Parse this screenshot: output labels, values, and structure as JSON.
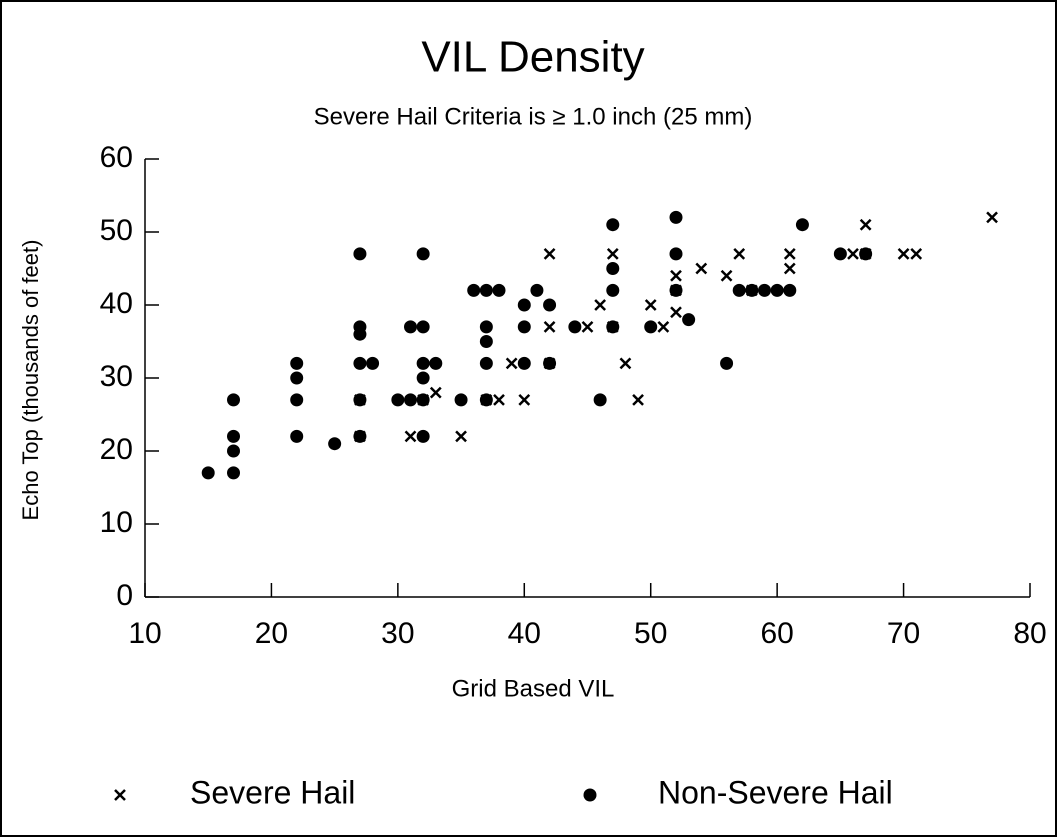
{
  "chart_data": {
    "type": "scatter",
    "title": "VIL Density",
    "subtitle": "Severe Hail Criteria is ≥ 1.0 inch (25 mm)",
    "x_label": "Grid Based VIL",
    "y_label": "Echo Top (thousands of feet)",
    "xlim": [
      10,
      80
    ],
    "xticks": [
      10,
      20,
      30,
      40,
      50,
      60,
      70,
      80
    ],
    "ylim": [
      0,
      60
    ],
    "yticks": [
      0,
      10,
      20,
      30,
      40,
      50,
      60
    ],
    "grid": false,
    "legend": "bottom",
    "series": [
      {
        "name": "Severe Hail",
        "color": "#000000",
        "marker": "x",
        "x": [
          77,
          70,
          71,
          66,
          67,
          67,
          61,
          61,
          57,
          58,
          56,
          54,
          52,
          52,
          52,
          51,
          50,
          49,
          48,
          47,
          47,
          46,
          45,
          42,
          42,
          42,
          40,
          39,
          38,
          37,
          35,
          33,
          32,
          31,
          27,
          27
        ],
        "y": [
          52,
          47,
          47,
          47,
          47,
          51,
          47,
          45,
          47,
          42,
          44,
          45,
          44,
          42,
          39,
          37,
          40,
          27,
          32,
          47,
          37,
          40,
          37,
          47,
          37,
          32,
          27,
          32,
          27,
          27,
          22,
          28,
          27,
          22,
          22,
          27
        ]
      },
      {
        "name": "Non-Severe Hail",
        "color": "#000000",
        "marker": "circle",
        "x": [
          15,
          17,
          17,
          17,
          17,
          22,
          22,
          22,
          22,
          25,
          27,
          27,
          27,
          27,
          27,
          27,
          28,
          30,
          31,
          31,
          32,
          32,
          32,
          32,
          32,
          32,
          33,
          35,
          36,
          37,
          37,
          37,
          37,
          37,
          38,
          40,
          40,
          40,
          41,
          42,
          42,
          44,
          46,
          47,
          47,
          47,
          47,
          50,
          52,
          52,
          52,
          53,
          56,
          57,
          58,
          59,
          60,
          61,
          62,
          65,
          67
        ],
        "y": [
          17,
          17,
          20,
          22,
          27,
          22,
          27,
          30,
          32,
          21,
          22,
          27,
          32,
          36,
          37,
          47,
          32,
          27,
          27,
          37,
          22,
          27,
          30,
          32,
          37,
          47,
          32,
          27,
          42,
          27,
          32,
          35,
          37,
          42,
          42,
          32,
          37,
          40,
          42,
          32,
          40,
          37,
          27,
          37,
          42,
          45,
          51,
          37,
          42,
          47,
          52,
          38,
          32,
          42,
          42,
          42,
          42,
          42,
          51,
          47,
          47
        ]
      }
    ]
  }
}
